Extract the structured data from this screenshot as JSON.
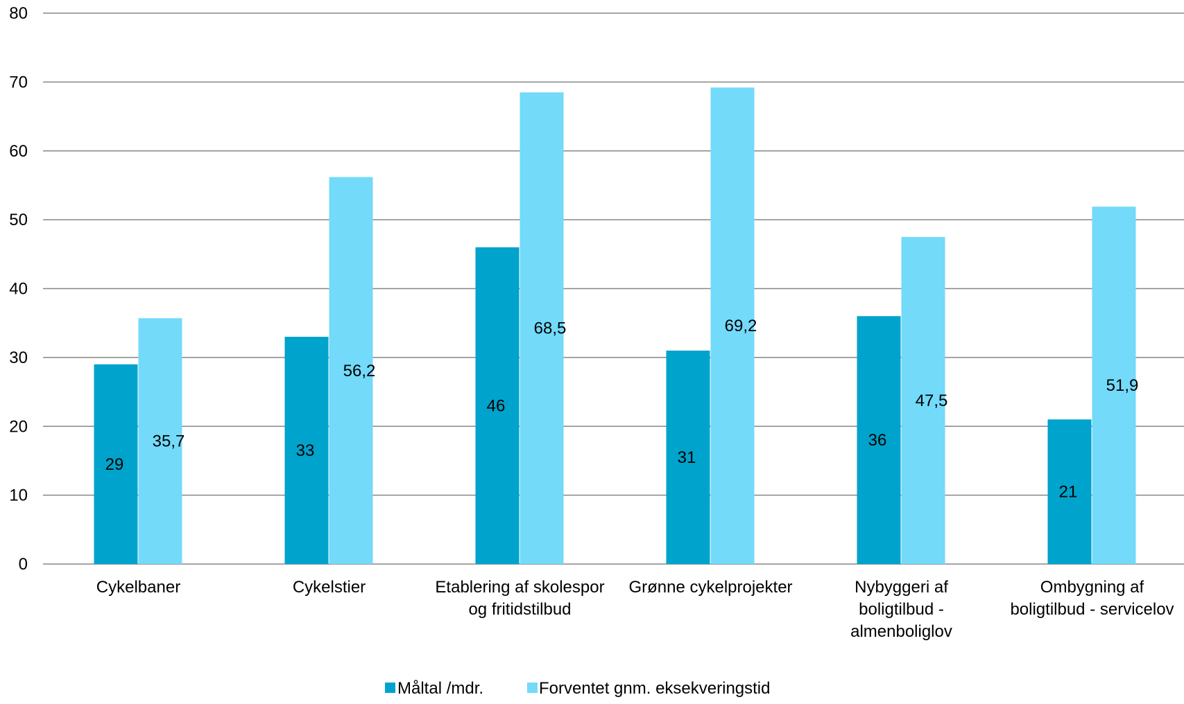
{
  "chart_data": {
    "type": "bar",
    "categories": [
      [
        "Cykelbaner"
      ],
      [
        "Cykelstier"
      ],
      [
        "Etablering af skolespor",
        "og fritidstilbud"
      ],
      [
        "Grønne cykelprojekter"
      ],
      [
        "Nybyggeri af",
        "boligtilbud -",
        "almenboliglov"
      ],
      [
        "Ombygning af",
        "boligtilbud - servicelov"
      ]
    ],
    "series": [
      {
        "name": "Måltal /mdr.",
        "color": "#00A3CC",
        "values": [
          29,
          33,
          46,
          31,
          36,
          21
        ],
        "labels": [
          "29",
          "33",
          "46",
          "31",
          "36",
          "21"
        ]
      },
      {
        "name": "Forventet gnm. eksekveringstid",
        "color": "#73DAFA",
        "values": [
          35.7,
          56.2,
          68.5,
          69.2,
          47.5,
          51.9
        ],
        "labels": [
          "35,7",
          "56,2",
          "68,5",
          "69,2",
          "47,5",
          "51,9"
        ]
      }
    ],
    "ylim": [
      0,
      80
    ],
    "yticks": [
      0,
      10,
      20,
      30,
      40,
      50,
      60,
      70,
      80
    ],
    "grid": true,
    "legend": "bottom-center"
  }
}
